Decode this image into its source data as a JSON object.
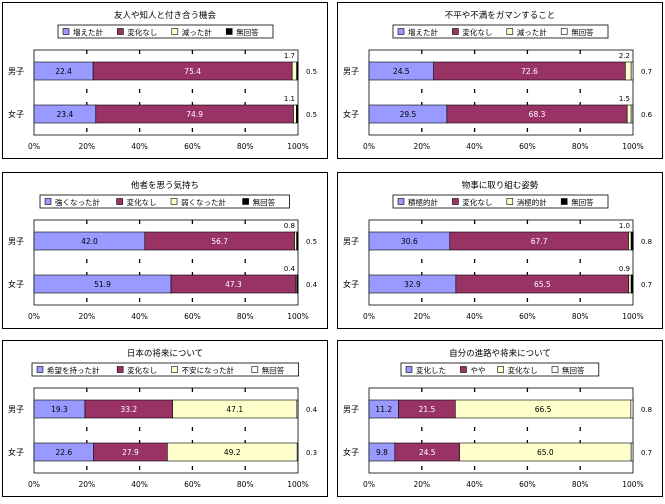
{
  "colors": {
    "c_blue": "#9999ff",
    "c_maroon": "#993366",
    "c_yellow": "#ffffcc",
    "c_white": "#ffffff",
    "c_black": "#000000",
    "c_gray": "#c0c0c0"
  },
  "chart_data": [
    {
      "type": "bar",
      "stacked": true,
      "orientation": "horizontal",
      "title": "友人や知人と付き合う機会",
      "categories": [
        "男子",
        "女子"
      ],
      "legend_placement": "top",
      "series": [
        {
          "name": "増えた計",
          "color": "c_blue",
          "values": [
            22.4,
            23.4
          ]
        },
        {
          "name": "変化なし",
          "color": "c_maroon",
          "values": [
            75.4,
            74.9
          ]
        },
        {
          "name": "減った計",
          "color": "c_yellow",
          "values": [
            1.7,
            1.1
          ]
        },
        {
          "name": "無回答",
          "color": "c_black",
          "values": [
            0.5,
            0.5
          ]
        }
      ],
      "xlim": [
        0,
        100
      ],
      "ticks": [
        "0%",
        "20%",
        "40%",
        "60%",
        "80%",
        "100%"
      ]
    },
    {
      "type": "bar",
      "stacked": true,
      "orientation": "horizontal",
      "title": "不平や不満をガマンすること",
      "categories": [
        "男子",
        "女子"
      ],
      "legend_placement": "top",
      "series": [
        {
          "name": "増えた計",
          "color": "c_blue",
          "values": [
            24.5,
            29.5
          ]
        },
        {
          "name": "変化なし",
          "color": "c_maroon",
          "values": [
            72.6,
            68.3
          ]
        },
        {
          "name": "減った計",
          "color": "c_yellow",
          "values": [
            2.2,
            1.5
          ]
        },
        {
          "name": "無回答",
          "color": "c_white",
          "values": [
            0.7,
            0.6
          ]
        }
      ],
      "xlim": [
        0,
        100
      ],
      "ticks": [
        "0%",
        "20%",
        "40%",
        "60%",
        "80%",
        "100%"
      ]
    },
    {
      "type": "bar",
      "stacked": true,
      "orientation": "horizontal",
      "title": "他者を思う気持ち",
      "categories": [
        "男子",
        "女子"
      ],
      "legend_placement": "top",
      "series": [
        {
          "name": "強くなった計",
          "color": "c_blue",
          "values": [
            42.0,
            51.9
          ]
        },
        {
          "name": "変化なし",
          "color": "c_maroon",
          "values": [
            56.7,
            47.3
          ]
        },
        {
          "name": "弱くなった計",
          "color": "c_yellow",
          "values": [
            0.8,
            0.4
          ]
        },
        {
          "name": "無回答",
          "color": "c_black",
          "values": [
            0.5,
            0.4
          ]
        }
      ],
      "xlim": [
        0,
        100
      ],
      "ticks": [
        "0%",
        "20%",
        "40%",
        "60%",
        "80%",
        "100%"
      ]
    },
    {
      "type": "bar",
      "stacked": true,
      "orientation": "horizontal",
      "title": "物事に取り組む姿勢",
      "categories": [
        "男子",
        "女子"
      ],
      "legend_placement": "top",
      "series": [
        {
          "name": "積極的計",
          "color": "c_blue",
          "values": [
            30.6,
            32.9
          ]
        },
        {
          "name": "変化なし",
          "color": "c_maroon",
          "values": [
            67.7,
            65.5
          ]
        },
        {
          "name": "消極的計",
          "color": "c_yellow",
          "values": [
            1.0,
            0.9
          ]
        },
        {
          "name": "無回答",
          "color": "c_black",
          "values": [
            0.8,
            0.7
          ]
        }
      ],
      "xlim": [
        0,
        100
      ],
      "ticks": [
        "0%",
        "20%",
        "40%",
        "60%",
        "80%",
        "100%"
      ]
    },
    {
      "type": "bar",
      "stacked": true,
      "orientation": "horizontal",
      "title": "日本の将来について",
      "categories": [
        "男子",
        "女子"
      ],
      "legend_placement": "top",
      "series": [
        {
          "name": "希望を持った計",
          "color": "c_blue",
          "values": [
            19.3,
            22.6
          ]
        },
        {
          "name": "変化なし",
          "color": "c_maroon",
          "values": [
            33.2,
            27.9
          ]
        },
        {
          "name": "不安になった計",
          "color": "c_yellow",
          "values": [
            47.1,
            49.2
          ]
        },
        {
          "name": "無回答",
          "color": "c_white",
          "values": [
            0.4,
            0.3
          ]
        }
      ],
      "xlim": [
        0,
        100
      ],
      "ticks": [
        "0%",
        "20%",
        "40%",
        "60%",
        "80%",
        "100%"
      ]
    },
    {
      "type": "bar",
      "stacked": true,
      "orientation": "horizontal",
      "title": "自分の進路や将来について",
      "categories": [
        "男子",
        "女子"
      ],
      "legend_placement": "top",
      "series": [
        {
          "name": "変化した",
          "color": "c_blue",
          "values": [
            11.2,
            9.8
          ]
        },
        {
          "name": "やや",
          "color": "c_maroon",
          "values": [
            21.5,
            24.5
          ]
        },
        {
          "name": "変化なし",
          "color": "c_yellow",
          "values": [
            66.5,
            65.0
          ]
        },
        {
          "name": "無回答",
          "color": "c_white",
          "values": [
            0.8,
            0.7
          ]
        }
      ],
      "xlim": [
        0,
        100
      ],
      "ticks": [
        "0%",
        "20%",
        "40%",
        "60%",
        "80%",
        "100%"
      ]
    }
  ]
}
